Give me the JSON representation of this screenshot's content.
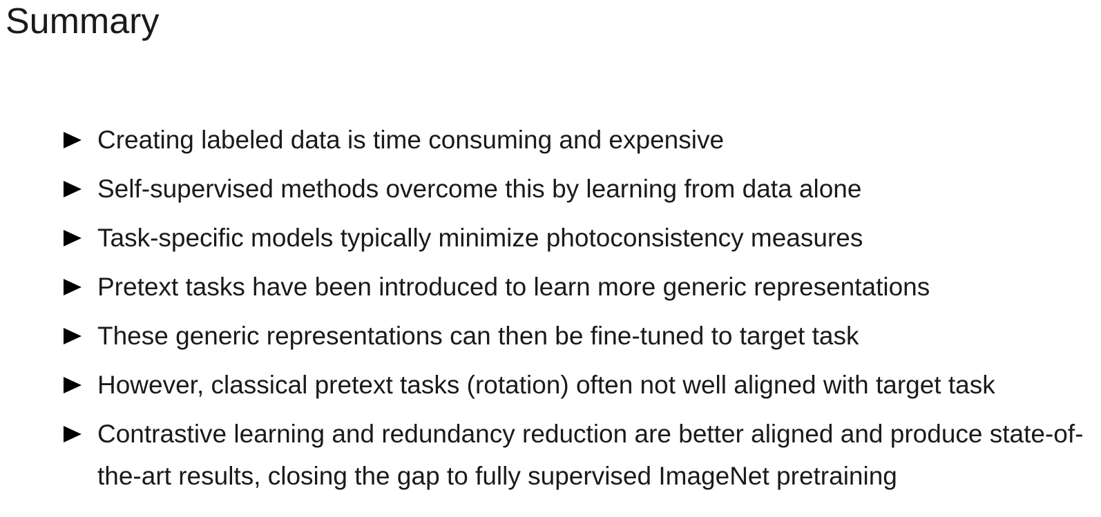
{
  "slide": {
    "title": "Summary",
    "bullet_icon": "triangle-right-icon",
    "bullets": [
      {
        "text": "Creating labeled data is time consuming and expensive"
      },
      {
        "text": "Self-supervised methods overcome this by learning from data alone"
      },
      {
        "text": "Task-specific models typically minimize photoconsistency measures"
      },
      {
        "text": "Pretext tasks have been introduced to learn more generic representations"
      },
      {
        "text": "These generic representations can then be fine-tuned to target task"
      },
      {
        "text": "However, classical pretext tasks (rotation) often not well aligned with target task"
      },
      {
        "text": "Contrastive learning and redundancy reduction are better aligned and produce state-of-the-art results, closing the gap to fully supervised ImageNet pretraining"
      }
    ]
  }
}
